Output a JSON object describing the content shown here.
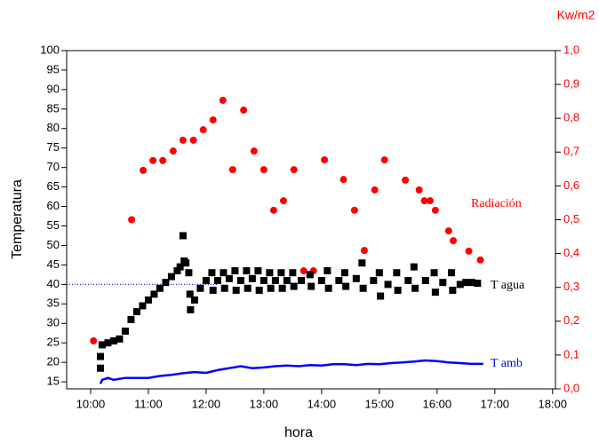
{
  "chart_data": {
    "type": "scatter",
    "xlabel": "hora",
    "ylabel": "Temperatura",
    "y2label": "Kw/m2",
    "xlim": [
      9.585,
      18.05
    ],
    "ylim": [
      13.2,
      100
    ],
    "y2lim": [
      0,
      1
    ],
    "xticks": [
      {
        "value": 10,
        "label": "10:00"
      },
      {
        "value": 11,
        "label": "11:00"
      },
      {
        "value": 12,
        "label": "12:00"
      },
      {
        "value": 13,
        "label": "13:00"
      },
      {
        "value": 14,
        "label": "14:00"
      },
      {
        "value": 15,
        "label": "15:00"
      },
      {
        "value": 16,
        "label": "16:00"
      },
      {
        "value": 17,
        "label": "17:00"
      },
      {
        "value": 18,
        "label": "18:00"
      }
    ],
    "yticks": [
      15,
      20,
      25,
      30,
      35,
      40,
      45,
      50,
      55,
      60,
      65,
      70,
      75,
      80,
      85,
      90,
      95,
      100
    ],
    "y2ticks": [
      {
        "value": 0,
        "label": "0,0"
      },
      {
        "value": 0.1,
        "label": "0,1"
      },
      {
        "value": 0.2,
        "label": "0,2"
      },
      {
        "value": 0.3,
        "label": "0,3"
      },
      {
        "value": 0.4,
        "label": "0,4"
      },
      {
        "value": 0.5,
        "label": "0,5"
      },
      {
        "value": 0.6,
        "label": "0,6"
      },
      {
        "value": 0.7,
        "label": "0,7"
      },
      {
        "value": 0.8,
        "label": "0,8"
      },
      {
        "value": 0.9,
        "label": "0,9"
      },
      {
        "value": 1,
        "label": "1,0"
      }
    ],
    "y2color": "#ff0000",
    "reference_line": {
      "value": 40,
      "color": "#0000cc"
    },
    "series": [
      {
        "name": "Radiación",
        "color": "#ff0000",
        "mark": "circle",
        "axis": "y2",
        "x": [
          10.05,
          10.71,
          10.91,
          11.08,
          11.25,
          11.43,
          11.6,
          11.78,
          11.95,
          12.12,
          12.29,
          12.46,
          12.65,
          12.83,
          13.0,
          13.17,
          13.34,
          13.52,
          13.69,
          13.86,
          14.05,
          14.38,
          14.57,
          14.74,
          14.92,
          15.09,
          15.45,
          15.69,
          15.78,
          15.88,
          15.97,
          16.2,
          16.28,
          16.55,
          16.75
        ],
        "values": [
          0.142,
          0.5,
          0.646,
          0.675,
          0.675,
          0.703,
          0.735,
          0.735,
          0.766,
          0.795,
          0.853,
          0.648,
          0.824,
          0.703,
          0.648,
          0.528,
          0.556,
          0.648,
          0.349,
          0.349,
          0.677,
          0.619,
          0.528,
          0.409,
          0.588,
          0.677,
          0.617,
          0.588,
          0.556,
          0.556,
          0.528,
          0.467,
          0.438,
          0.407,
          0.381
        ]
      },
      {
        "name": "T agua",
        "color": "#000000",
        "mark": "square",
        "x": [
          10.17,
          10.17,
          10.2,
          10.3,
          10.4,
          10.5,
          10.6,
          10.7,
          10.8,
          10.9,
          11.0,
          11.1,
          11.2,
          11.3,
          11.4,
          11.5,
          11.55,
          11.6,
          11.62,
          11.65,
          11.7,
          11.72,
          11.73,
          11.8,
          11.9,
          12.0,
          12.1,
          12.12,
          12.2,
          12.3,
          12.32,
          12.4,
          12.5,
          12.52,
          12.6,
          12.7,
          12.72,
          12.8,
          12.9,
          12.92,
          13.0,
          13.1,
          13.12,
          13.2,
          13.3,
          13.32,
          13.4,
          13.5,
          13.52,
          13.65,
          13.8,
          13.82,
          14.0,
          14.1,
          14.12,
          14.3,
          14.4,
          14.42,
          14.6,
          14.7,
          14.72,
          14.9,
          15.0,
          15.02,
          15.15,
          15.3,
          15.32,
          15.5,
          15.6,
          15.62,
          15.8,
          15.95,
          15.97,
          16.1,
          16.25,
          16.27,
          16.4,
          16.5,
          16.6,
          16.7
        ],
        "values": [
          18.5,
          21.5,
          24.5,
          25,
          25.5,
          26,
          28,
          31,
          33,
          34.5,
          36,
          37.5,
          39,
          40.5,
          42,
          43.5,
          44.5,
          52.5,
          46,
          45.5,
          43,
          37.5,
          33.5,
          36,
          39,
          41,
          43,
          38.5,
          41,
          43,
          39,
          41.5,
          43.5,
          38.5,
          41,
          43.5,
          39,
          41.5,
          43.5,
          38.5,
          41,
          43,
          39,
          41,
          43,
          39,
          41,
          43,
          39.5,
          41,
          42.5,
          39.5,
          41,
          43.5,
          39,
          41,
          43,
          39.5,
          41.5,
          45.5,
          39,
          41,
          43,
          37,
          40,
          43,
          38.5,
          41,
          44.5,
          39,
          41,
          43,
          38,
          40.5,
          43,
          38.5,
          40,
          40.5,
          40.5,
          40.3
        ]
      },
      {
        "name": "T amb",
        "color": "#0000ff",
        "mark": "line",
        "x": [
          10.17,
          10.2,
          10.3,
          10.4,
          10.6,
          10.8,
          11.0,
          11.2,
          11.4,
          11.6,
          11.8,
          12.0,
          12.2,
          12.4,
          12.6,
          12.8,
          13.0,
          13.2,
          13.4,
          13.6,
          13.8,
          14.0,
          14.2,
          14.4,
          14.6,
          14.8,
          15.0,
          15.2,
          15.4,
          15.6,
          15.8,
          16.0,
          16.2,
          16.4,
          16.6,
          16.8
        ],
        "values": [
          14.5,
          15.5,
          16,
          15.5,
          16,
          16,
          16,
          16.5,
          16.8,
          17.2,
          17.5,
          17.3,
          18,
          18.5,
          19,
          18.5,
          18.7,
          19,
          19.2,
          19,
          19.3,
          19.2,
          19.5,
          19.5,
          19.3,
          19.6,
          19.5,
          19.8,
          20,
          20.2,
          20.5,
          20.3,
          20,
          19.8,
          19.6,
          19.6
        ]
      }
    ]
  }
}
